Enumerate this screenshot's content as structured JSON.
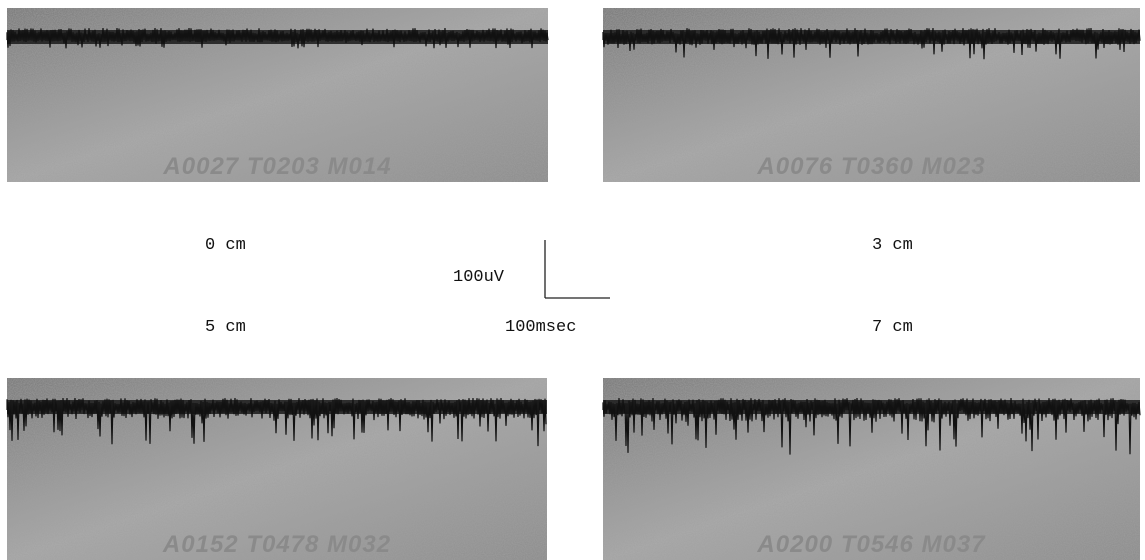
{
  "panels": [
    {
      "code": "A0027 T0203 M014",
      "distance": "0 cm"
    },
    {
      "code": "A0076 T0360 M023",
      "distance": "3 cm"
    },
    {
      "code": "A0152 T0478 M032",
      "distance": "5 cm"
    },
    {
      "code": "A0200 T0546 M037",
      "distance": "7 cm"
    }
  ],
  "scale_bar": {
    "vertical": "100uV",
    "horizontal": "100msec"
  }
}
